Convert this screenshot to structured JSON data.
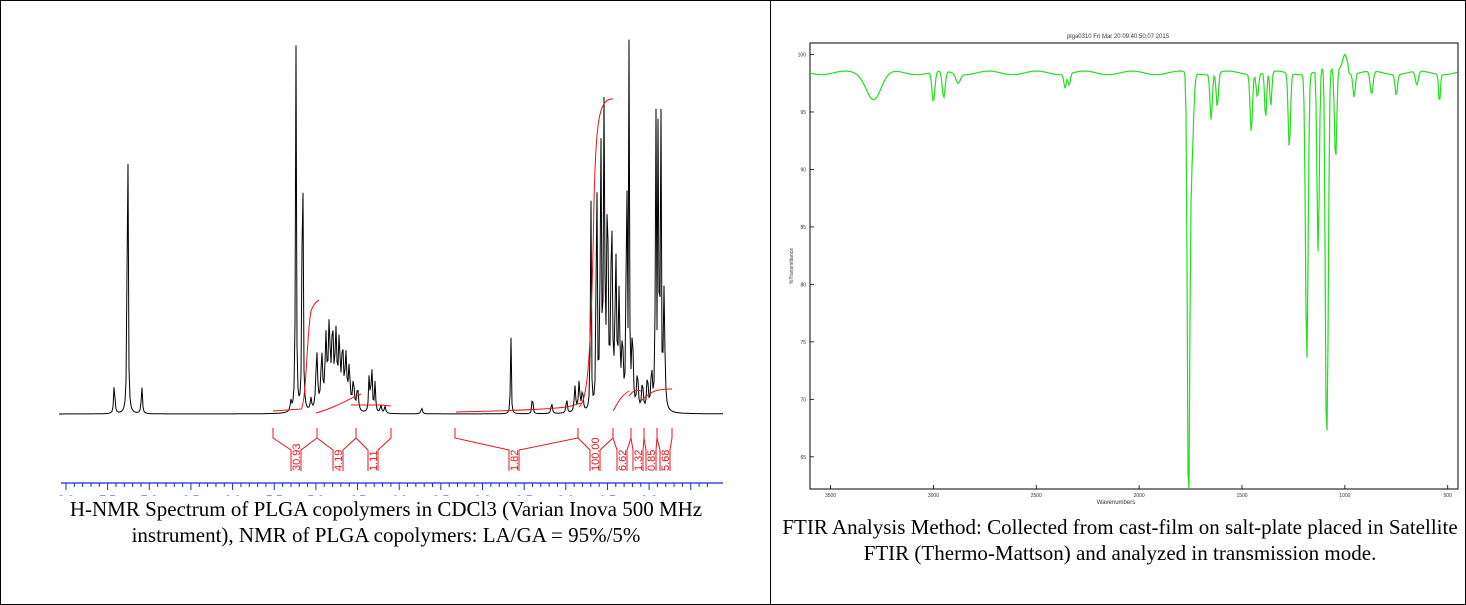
{
  "nmr": {
    "axis_unit": "ppm",
    "ticks": [
      "8.0",
      "7.5",
      "7.0",
      "6.5",
      "6.0",
      "5.5",
      "5.0",
      "4.5",
      "4.0",
      "3.5",
      "3.0",
      "2.5",
      "2.0",
      "1.5",
      "1.0"
    ],
    "integrals": [
      "30.93",
      "4.19",
      "1.11",
      "1.82",
      "100.00",
      "6.62",
      "1.32",
      "0.85",
      "5.68"
    ],
    "caption": "H-NMR Spectrum of PLGA copolymers in CDCl3 (Varian Inova 500 MHz instrument), NMR of PLGA copolymers: LA/GA = 95%/5%",
    "trace_color": "#000000",
    "integral_color": "#e8151b",
    "axis_color": "#1b2ad8"
  },
  "ftir": {
    "title": "plga0310  Fri Mar 20 09:40:50:07 2015",
    "xlabel": "Wavenumbers",
    "ylabel": "%Transmittance",
    "xticks": [
      "3500",
      "3000",
      "2500",
      "2000",
      "1500",
      "1000",
      "500"
    ],
    "yticks": [
      "100",
      "95",
      "90",
      "85",
      "80",
      "75",
      "70",
      "65"
    ],
    "caption": "FTIR Analysis Method: Collected from cast-film on salt-plate placed in Satellite FTIR (Thermo-Mattson) and analyzed in transmission mode.",
    "trace_color": "#22e01c"
  }
}
